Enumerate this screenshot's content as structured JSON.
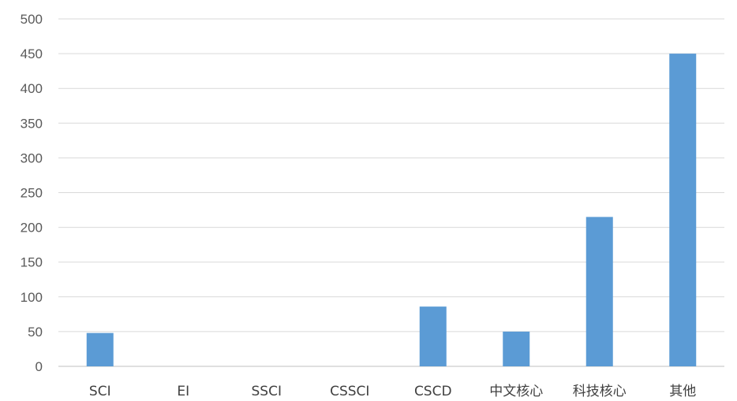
{
  "chart_data": {
    "type": "bar",
    "categories": [
      "SCI",
      "EI",
      "SSCI",
      "CSSCI",
      "CSCD",
      "中文核心",
      "科技核心",
      "其他"
    ],
    "values": [
      48,
      0,
      0,
      0,
      86,
      50,
      215,
      450
    ],
    "ylim": [
      0,
      500
    ],
    "yticks": [
      0,
      50,
      100,
      150,
      200,
      250,
      300,
      350,
      400,
      450,
      500
    ],
    "grid": true,
    "legend": "none",
    "bar_color": "#5b9bd5"
  }
}
